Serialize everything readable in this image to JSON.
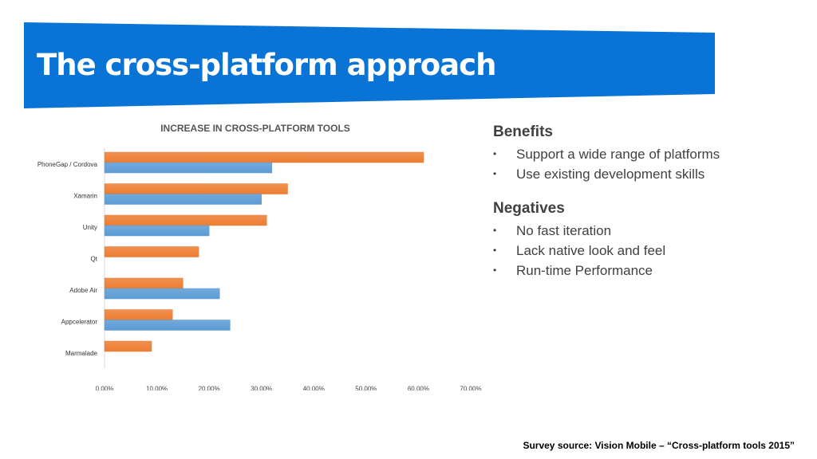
{
  "slide": {
    "title": "The cross-platform approach",
    "source": "Survey source: Vision Mobile – “Cross-platform tools 2015”"
  },
  "benefits": {
    "heading": "Benefits",
    "items": [
      "Support a wide range of platforms",
      "Use existing development skills"
    ]
  },
  "negatives": {
    "heading": "Negatives",
    "items": [
      "No fast iteration",
      "Lack native look and feel",
      "Run-time Performance"
    ]
  },
  "colors": {
    "banner": "#0a74d6",
    "orange": "#ed7d31",
    "blue": "#5b9bd5"
  },
  "chart_data": {
    "type": "bar",
    "orientation": "horizontal",
    "title": "INCREASE IN CROSS-PLATFORM TOOLS",
    "categories": [
      "PhoneGap / Cordova",
      "Xamarin",
      "Unity",
      "Qt",
      "Adobe Air",
      "Appcelerator",
      "Marmalade"
    ],
    "series": [
      {
        "values": [
          61,
          35,
          31,
          18,
          15,
          13,
          9
        ],
        "color": "#ed7d31"
      },
      {
        "values": [
          32,
          30,
          20,
          null,
          22,
          24,
          null
        ],
        "color": "#5b9bd5"
      }
    ],
    "xlim": [
      0,
      70
    ],
    "xticks": [
      "0.00%",
      "10.00%",
      "20.00%",
      "30.00%",
      "40.00%",
      "50.00%",
      "60.00%",
      "70.00%"
    ],
    "grid": false,
    "legend": "none"
  }
}
